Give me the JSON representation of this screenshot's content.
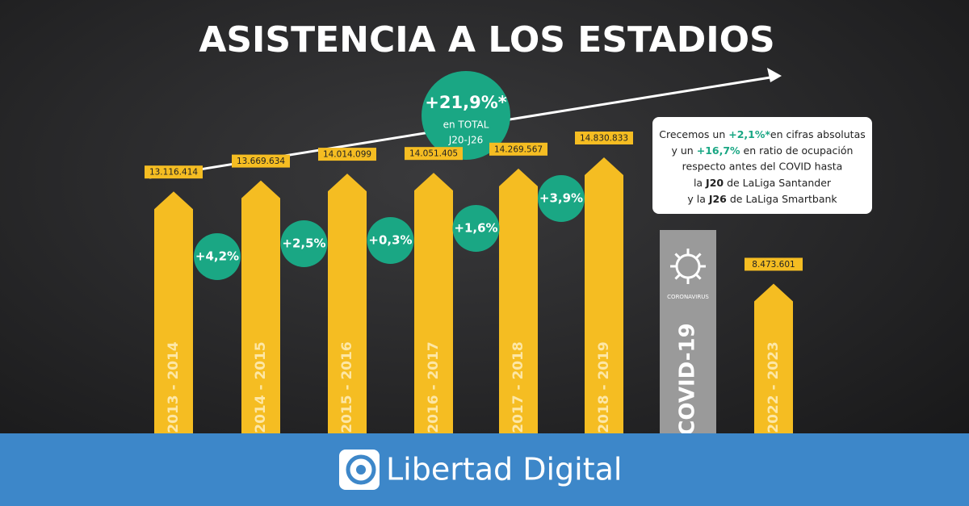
{
  "chart_data": {
    "type": "arrow-bar",
    "title": "ASISTENCIA A LOS ESTADIOS",
    "categories": [
      "2013 - 2014",
      "2014 - 2015",
      "2015 - 2016",
      "2016 - 2017",
      "2017 - 2018",
      "2018 - 2019",
      "COVID-19",
      "2022 - 2023"
    ],
    "values": [
      13116414,
      13669634,
      14014099,
      14051405,
      14269567,
      14830833,
      null,
      8473601
    ],
    "value_labels": [
      "13.116.414",
      "13.669.634",
      "14.014.099",
      "14.051.405",
      "14.269.567",
      "14.830.833",
      null,
      "8.473.601"
    ],
    "color": "#f5bd22",
    "covid_label": "CORONAVIRUS",
    "growth_labels": [
      "+4,2%",
      "+2,5%",
      "+0,3%",
      "+1,6%",
      "+3,9%"
    ],
    "growth_color": "#1aa784",
    "total": {
      "value": "+21,9%*",
      "line1": "en TOTAL",
      "line2": "J20-J26"
    },
    "callout": {
      "l1a": "Crecemos un ",
      "l1b": "+2,1%*",
      "l1c": "en cifras absolutas",
      "l2a": "y un ",
      "l2b": "+16,7%",
      "l2c": " en ratio de ocupación",
      "l3": "respecto antes del COVID hasta",
      "l4a": "la ",
      "l4b": "J20",
      "l4c": " de LaLiga Santander",
      "l5a": "y la ",
      "l5b": "J26",
      "l5c": " de LaLiga Smartbank"
    },
    "banner": "Libertad Digital"
  }
}
